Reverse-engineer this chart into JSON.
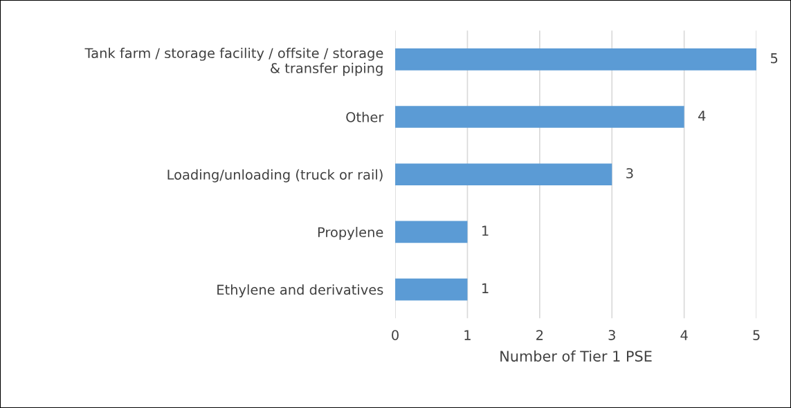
{
  "chart_data": {
    "type": "bar",
    "orientation": "horizontal",
    "xlabel": "Number of Tier 1 PSE",
    "categories": [
      "Tank farm / storage facility / offsite / storage\n& transfer piping",
      "Other",
      "Loading/unloading (truck or rail)",
      "Propylene",
      "Ethylene and derivatives"
    ],
    "values": [
      5,
      4,
      3,
      1,
      1
    ],
    "color": "#5b9bd5",
    "xlim": [
      0,
      5
    ],
    "xticks": [
      0,
      1,
      2,
      3,
      4,
      5
    ],
    "grid": "x",
    "data_labels": true
  }
}
